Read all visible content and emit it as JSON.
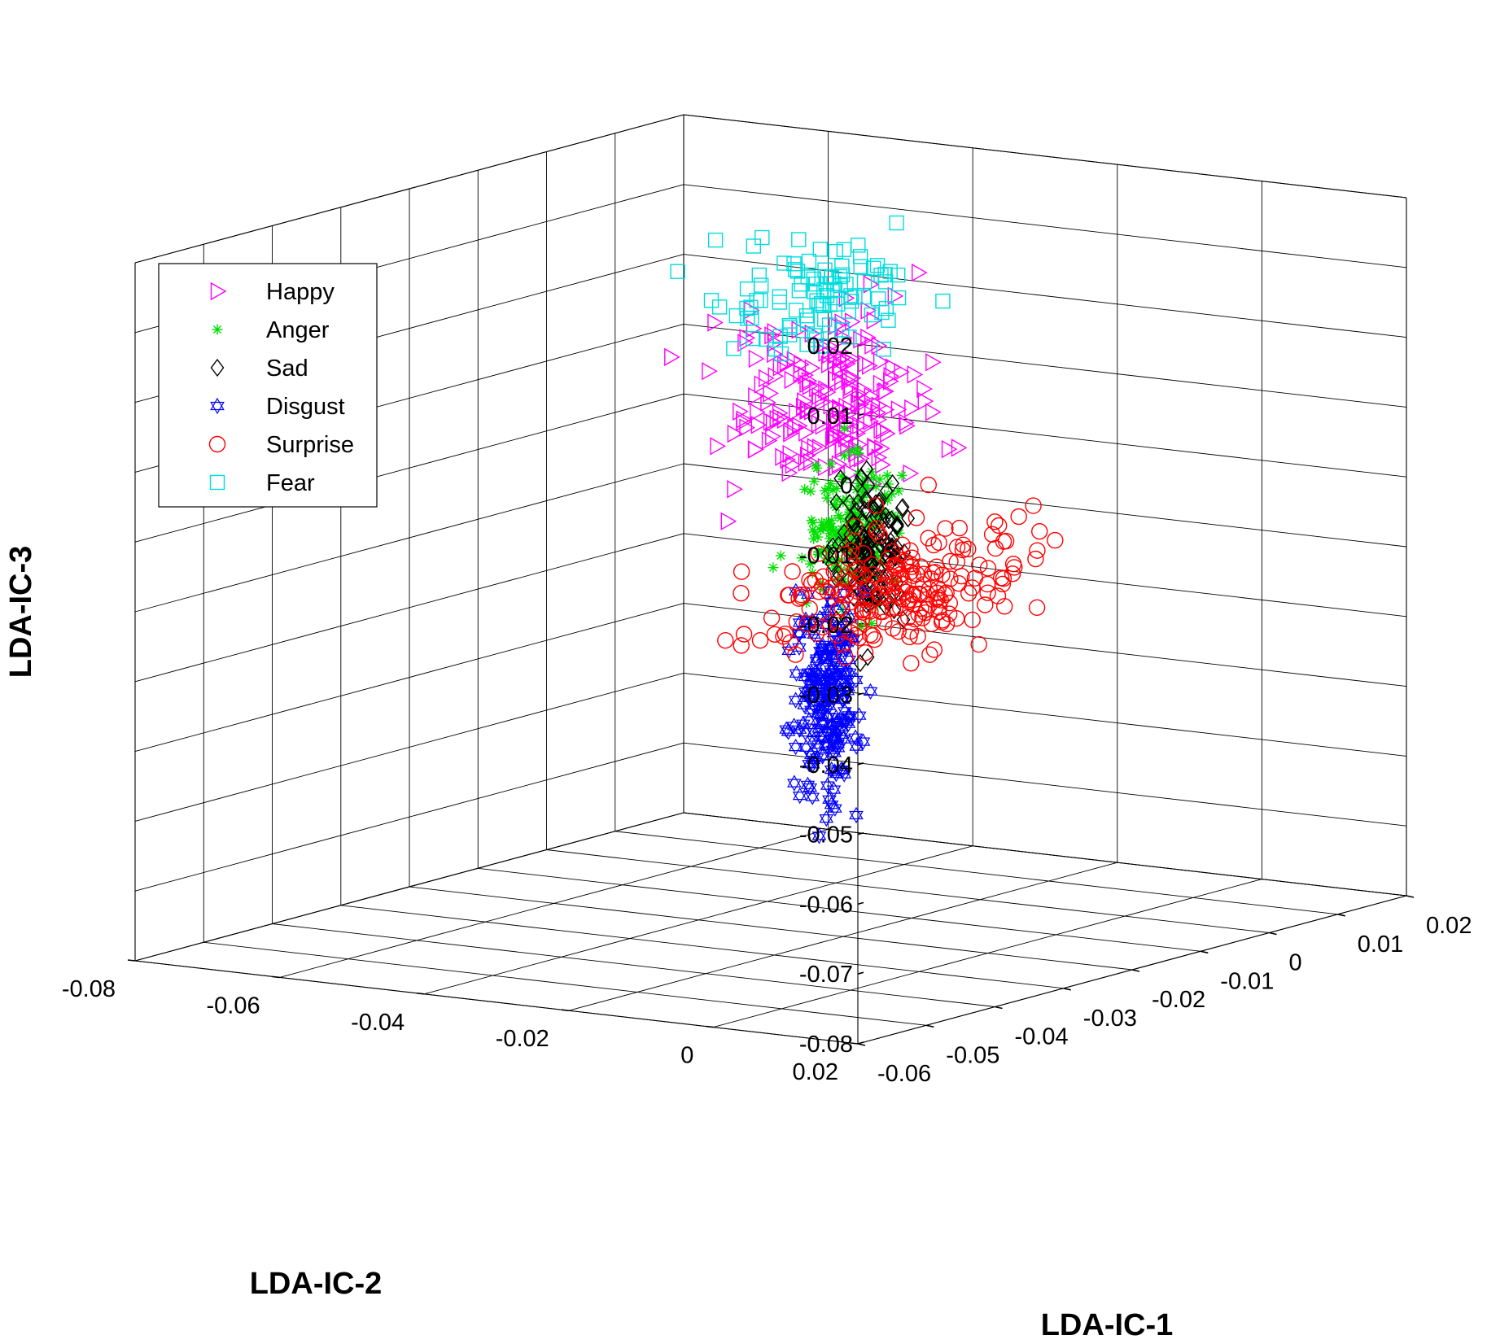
{
  "chart_data": {
    "type": "scatter3d",
    "title": "",
    "xlabel": "LDA-IC-1",
    "ylabel": "LDA-IC-2",
    "zlabel": "LDA-IC-3",
    "xlim": [
      -0.06,
      0.02
    ],
    "ylim": [
      -0.08,
      0.02
    ],
    "zlim": [
      -0.08,
      0.02
    ],
    "x_ticks": [
      -0.06,
      -0.05,
      -0.04,
      -0.03,
      -0.02,
      -0.01,
      0,
      0.01,
      0.02
    ],
    "x_tick_labels": [
      "-0.06",
      "-0.05",
      "-0.04",
      "-0.03",
      "-0.02",
      "-0.01",
      "0",
      "0.01",
      "0.02"
    ],
    "y_ticks": [
      -0.08,
      -0.06,
      -0.04,
      -0.02,
      0,
      0.02
    ],
    "y_tick_labels": [
      "-0.08",
      "-0.06",
      "-0.04",
      "-0.02",
      "0",
      "0.02"
    ],
    "z_ticks": [
      -0.08,
      -0.07,
      -0.06,
      -0.05,
      -0.04,
      -0.03,
      -0.02,
      -0.01,
      0,
      0.01,
      0.02
    ],
    "z_tick_labels": [
      "-0.08",
      "-0.07",
      "-0.06",
      "-0.05",
      "-0.04",
      "-0.03",
      "-0.02",
      "-0.01",
      "0",
      "0.01",
      "0.02"
    ],
    "grid": true,
    "legend_position": "top-left",
    "series": [
      {
        "name": "Happy",
        "marker": "triangle-right",
        "color": "#ff00ff",
        "count": 200,
        "clusters": [
          {
            "x": -0.043,
            "y": 0.0,
            "z": 0.0052,
            "sx": 0.0042,
            "sy": 0.0055,
            "sz": 0.0062
          }
        ]
      },
      {
        "name": "Anger",
        "marker": "asterisk",
        "color": "#00e000",
        "count": 200,
        "clusters": [
          {
            "x": -0.0355,
            "y": -0.0045,
            "z": -0.016,
            "sx": 0.0025,
            "sy": 0.002,
            "sz": 0.0048
          }
        ]
      },
      {
        "name": "Sad",
        "marker": "diamond",
        "color": "#000000",
        "count": 150,
        "clusters": [
          {
            "x": -0.031,
            "y": -0.0055,
            "z": -0.021,
            "sx": 0.0018,
            "sy": 0.0016,
            "sz": 0.0052
          }
        ]
      },
      {
        "name": "Disgust",
        "marker": "hexagram",
        "color": "#0000ff",
        "count": 200,
        "clusters": [
          {
            "x": -0.0275,
            "y": -0.015,
            "z": -0.043,
            "sx": 0.0016,
            "sy": 0.0016,
            "sz": 0.0068
          }
        ]
      },
      {
        "name": "Surprise",
        "marker": "circle",
        "color": "#ff0000",
        "count": 220,
        "clusters": [
          {
            "x": -0.028,
            "y": -0.005,
            "z": -0.0265,
            "sx": 0.0075,
            "sy": 0.0045,
            "sz": 0.0045
          }
        ]
      },
      {
        "name": "Fear",
        "marker": "square",
        "color": "#00dddd",
        "count": 100,
        "clusters": [
          {
            "x": -0.042,
            "y": -0.0035,
            "z": 0.0185,
            "sx": 0.0048,
            "sy": 0.0045,
            "sz": 0.0042
          }
        ]
      }
    ]
  }
}
